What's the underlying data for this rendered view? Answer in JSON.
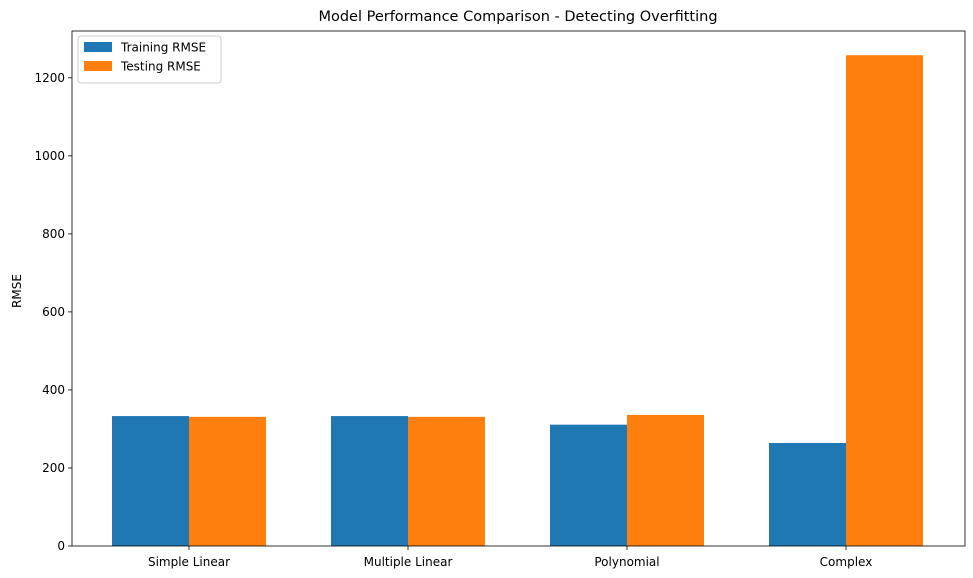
{
  "chart_data": {
    "type": "bar",
    "title": "Model Performance Comparison - Detecting Overfitting",
    "xlabel": "",
    "ylabel": "RMSE",
    "categories": [
      "Simple Linear",
      "Multiple Linear",
      "Polynomial",
      "Complex"
    ],
    "series": [
      {
        "name": "Training RMSE",
        "color": "#1f77b4",
        "values": [
          333,
          333,
          311,
          264
        ]
      },
      {
        "name": "Testing RMSE",
        "color": "#ff7f0e",
        "values": [
          331,
          331,
          336,
          1258
        ]
      }
    ],
    "ylim": [
      0,
      1320
    ],
    "yticks": [
      0,
      200,
      400,
      600,
      800,
      1000,
      1200
    ],
    "grid": false,
    "legend": "upper left"
  }
}
